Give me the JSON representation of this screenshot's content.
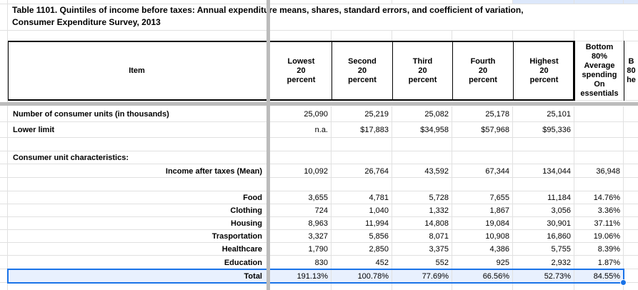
{
  "sheet": {
    "title": "Table 1101. Quintiles of income before taxes: Annual expenditure means, shares, standard errors, and coefficient of variation, Consumer Expenditure Survey, 2013",
    "header": {
      "item": "Item",
      "columns": [
        "Lowest\n20\npercent",
        "Second\n20\npercent",
        "Third\n20\npercent",
        "Fourth\n20\npercent",
        "Highest\n20\npercent",
        "Bottom\n80%\nAverage\nspending\nOn\nessentials",
        "B\n80\nhe"
      ]
    },
    "rows": [
      {
        "label": "Number of consumer units (in thousands)",
        "align": "left",
        "values": [
          "25,090",
          "25,219",
          "25,082",
          "25,178",
          "25,101",
          "",
          ""
        ]
      },
      {
        "label": "Lower limit",
        "align": "left",
        "values": [
          "n.a.",
          "$17,883",
          "$34,958",
          "$57,968",
          "$95,336",
          "",
          ""
        ]
      },
      {
        "label": "",
        "align": "left",
        "values": [
          "",
          "",
          "",
          "",
          "",
          "",
          ""
        ]
      },
      {
        "label": "Consumer unit characteristics:",
        "align": "left",
        "values": [
          "",
          "",
          "",
          "",
          "",
          "",
          ""
        ]
      },
      {
        "label": "Income after taxes (Mean)",
        "align": "right",
        "values": [
          "10,092",
          "26,764",
          "43,592",
          "67,344",
          "134,044",
          "36,948",
          ""
        ]
      },
      {
        "label": "",
        "align": "left",
        "values": [
          "",
          "",
          "",
          "",
          "",
          "",
          ""
        ]
      },
      {
        "label": "Food",
        "align": "right",
        "values": [
          "3,655",
          "4,781",
          "5,728",
          "7,655",
          "11,184",
          "14.76%",
          ""
        ]
      },
      {
        "label": "Clothing",
        "align": "right",
        "values": [
          "724",
          "1,040",
          "1,332",
          "1,867",
          "3,056",
          "3.36%",
          ""
        ]
      },
      {
        "label": "Housing",
        "align": "right",
        "values": [
          "8,963",
          "11,994",
          "14,808",
          "19,084",
          "30,901",
          "37.11%",
          ""
        ]
      },
      {
        "label": "Trasportation",
        "align": "right",
        "values": [
          "3,327",
          "5,856",
          "8,071",
          "10,908",
          "16,860",
          "19.06%",
          ""
        ]
      },
      {
        "label": "Healthcare",
        "align": "right",
        "values": [
          "1,790",
          "2,850",
          "3,375",
          "4,386",
          "5,755",
          "8.39%",
          ""
        ]
      },
      {
        "label": "Education",
        "align": "right",
        "values": [
          "830",
          "452",
          "552",
          "925",
          "2,932",
          "1.87%",
          ""
        ]
      },
      {
        "label": "Total",
        "align": "right",
        "selected": true,
        "values": [
          "191.13%",
          "100.78%",
          "77.69%",
          "66.56%",
          "52.73%",
          "84.55%",
          ""
        ]
      }
    ],
    "colors": {
      "selection_border": "#1a73e8",
      "selection_fill": "#e8f0fe",
      "gridline": "#e1e1e1",
      "divider": "#bcbcbc",
      "table_border": "#000000",
      "top_strip_fill": "#dde8fb"
    }
  }
}
